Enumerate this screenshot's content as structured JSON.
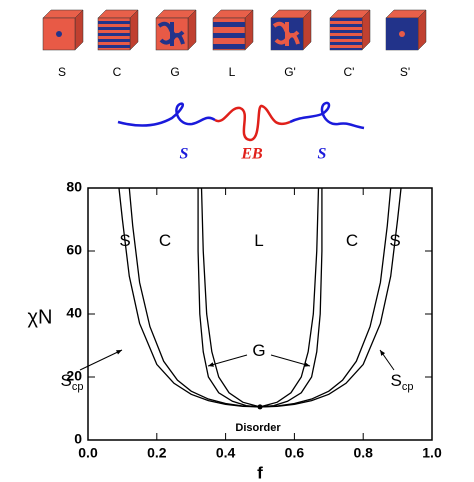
{
  "structures": [
    "S",
    "C",
    "G",
    "L",
    "G'",
    "C'",
    "S'"
  ],
  "polymer": {
    "labels": [
      "S",
      "EB",
      "S"
    ]
  },
  "chart_data": {
    "type": "line",
    "xlabel": "f",
    "ylabel": "χN",
    "xlim": [
      0,
      1
    ],
    "ylim": [
      0,
      80
    ],
    "xticks": [
      {
        "value": 0,
        "label": "0.0"
      },
      0.2,
      0.4,
      0.6,
      0.8,
      {
        "value": 1,
        "label": "1.0"
      }
    ],
    "yticks": [
      0,
      20,
      40,
      60,
      80
    ],
    "series": [
      {
        "color": "#000000",
        "x": [
          0.09,
          0.1,
          0.12,
          0.15,
          0.2,
          0.25,
          0.3,
          0.35,
          0.4,
          0.45,
          0.5,
          0.55,
          0.6,
          0.65,
          0.7,
          0.75,
          0.8,
          0.85,
          0.88,
          0.9,
          0.91
        ],
        "values": [
          80,
          70,
          52,
          37,
          24,
          18,
          14.5,
          12.5,
          11.3,
          10.7,
          10.5,
          10.7,
          11.3,
          12.5,
          14.5,
          18,
          24,
          37,
          52,
          70,
          80
        ]
      },
      {
        "color": "#000000",
        "x": [
          0.12,
          0.13,
          0.15,
          0.18,
          0.22,
          0.26,
          0.3,
          0.35,
          0.4,
          0.45,
          0.5,
          0.55,
          0.6,
          0.65,
          0.7,
          0.74,
          0.78,
          0.82,
          0.85,
          0.87,
          0.88
        ],
        "values": [
          80,
          68,
          50,
          36,
          25,
          19,
          15.5,
          13,
          11.6,
          10.8,
          10.5,
          10.8,
          11.6,
          13,
          15.5,
          19,
          25,
          36,
          50,
          68,
          80
        ]
      },
      {
        "color": "#000000",
        "x": [
          0.32,
          0.32,
          0.325,
          0.335,
          0.35,
          0.38,
          0.42,
          0.46,
          0.5,
          0.54,
          0.58,
          0.62,
          0.65,
          0.665,
          0.675,
          0.68,
          0.68
        ],
        "values": [
          80,
          60,
          40,
          28,
          20,
          15,
          12.3,
          10.9,
          10.5,
          10.9,
          12.3,
          15,
          20,
          28,
          40,
          60,
          80
        ]
      },
      {
        "color": "#000000",
        "x": [
          0.33,
          0.335,
          0.345,
          0.36,
          0.38,
          0.41,
          0.45,
          0.5,
          0.55,
          0.59,
          0.62,
          0.64,
          0.655,
          0.665,
          0.67
        ],
        "values": [
          80,
          60,
          40,
          28,
          20,
          15,
          12,
          10.5,
          12,
          15,
          20,
          28,
          40,
          60,
          80
        ]
      }
    ],
    "critical_point": {
      "x": 0.5,
      "y": 10.5
    },
    "annotations": [
      {
        "text": "S"
      },
      {
        "text": "C"
      },
      {
        "text": "L"
      },
      {
        "text": "C"
      },
      {
        "text": "S"
      },
      {
        "text": "G"
      },
      {
        "text": "S",
        "sub": "cp"
      },
      {
        "text": "S",
        "sub": "cp"
      },
      {
        "text": "Disorder"
      }
    ]
  }
}
